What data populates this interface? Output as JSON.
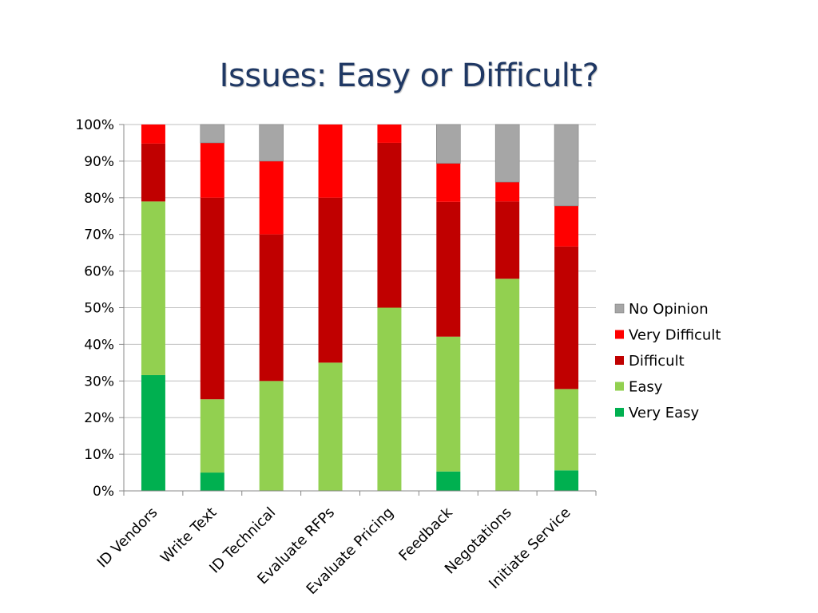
{
  "slide": {
    "title": "Issues:  Easy or Difficult?"
  },
  "chart_data": {
    "type": "bar",
    "stacked": true,
    "title": "Issues:  Easy or Difficult?",
    "xlabel": "",
    "ylabel": "",
    "ylim": [
      0,
      100
    ],
    "y_ticks": [
      "0%",
      "10%",
      "20%",
      "30%",
      "40%",
      "50%",
      "60%",
      "70%",
      "80%",
      "90%",
      "100%"
    ],
    "grid": true,
    "legend_position": "right",
    "categories": [
      "ID Vendors",
      "Write Text",
      "ID Technical",
      "Evaluate RFPs",
      "Evaluate Pricing",
      "Feedback",
      "Negotations",
      "Initiate Service"
    ],
    "series": [
      {
        "name": "Very Easy",
        "color": "#00b050",
        "values": [
          31.6,
          5,
          0,
          0,
          0,
          5.3,
          0,
          5.6
        ]
      },
      {
        "name": "Easy",
        "color": "#92d050",
        "values": [
          47.4,
          20,
          30,
          35,
          50,
          36.8,
          57.9,
          22.2
        ]
      },
      {
        "name": "Difficult",
        "color": "#c00000",
        "values": [
          15.8,
          55,
          40,
          45,
          45,
          36.8,
          21.1,
          38.9
        ]
      },
      {
        "name": "Very Difficult",
        "color": "#ff0000",
        "values": [
          5.2,
          15,
          20,
          20,
          5,
          10.5,
          5.3,
          11.1
        ]
      },
      {
        "name": "No Opinion",
        "color": "#a6a6a6",
        "values": [
          0,
          5,
          10,
          0,
          0,
          10.6,
          15.7,
          22.2
        ]
      }
    ]
  }
}
